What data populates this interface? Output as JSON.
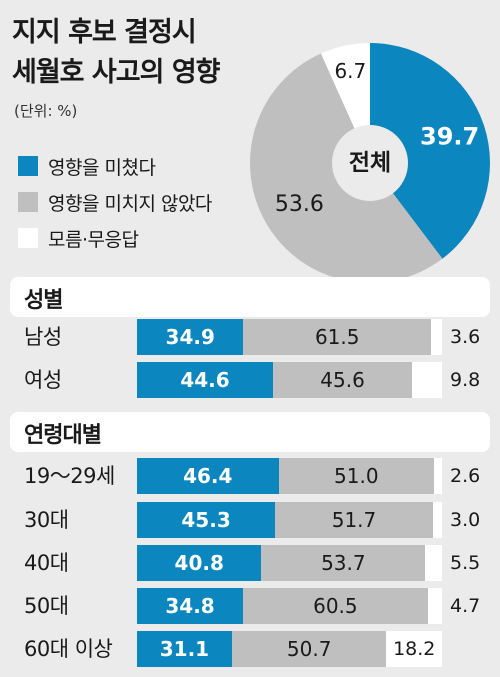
{
  "title_line1": "지지 후보 결정시",
  "title_line2": "세월호 사고의 영향",
  "unit": "(단위: %)",
  "legend": [
    {
      "label": "영향을 미쳤다",
      "color": "#0b86bf"
    },
    {
      "label": "영향을 미치지 않았다",
      "color": "#bfbfbf"
    },
    {
      "label": "모름·무응답",
      "color": "#ffffff"
    }
  ],
  "chart_data": [
    {
      "type": "pie",
      "center_label": "전체",
      "labels": [
        "영향을 미쳤다",
        "영향을 미치지 않았다",
        "모름·무응답"
      ],
      "values": [
        39.7,
        53.6,
        6.7
      ],
      "value_labels": [
        "39.7",
        "53.6",
        "6.7"
      ],
      "colors": [
        "#0b86bf",
        "#bfbfbf",
        "#ffffff"
      ]
    },
    {
      "type": "bar",
      "title": "성별",
      "categories": [
        "남성",
        "여성"
      ],
      "series": [
        {
          "name": "영향을 미쳤다",
          "values": [
            34.9,
            44.6
          ],
          "labels": [
            "34.9",
            "44.6"
          ]
        },
        {
          "name": "영향을 미치지 않았다",
          "values": [
            61.5,
            45.6
          ],
          "labels": [
            "61.5",
            "45.6"
          ]
        },
        {
          "name": "모름·무응답",
          "values": [
            3.6,
            9.8
          ],
          "labels": [
            "3.6",
            "9.8"
          ]
        }
      ]
    },
    {
      "type": "bar",
      "title": "연령대별",
      "categories": [
        "19～29세",
        "30대",
        "40대",
        "50대",
        "60대 이상"
      ],
      "series": [
        {
          "name": "영향을 미쳤다",
          "values": [
            46.4,
            45.3,
            40.8,
            34.8,
            31.1
          ],
          "labels": [
            "46.4",
            "45.3",
            "40.8",
            "34.8",
            "31.1"
          ]
        },
        {
          "name": "영향을 미치지 않았다",
          "values": [
            51.0,
            51.7,
            53.7,
            60.5,
            50.7
          ],
          "labels": [
            "51.0",
            "51.7",
            "53.7",
            "60.5",
            "50.7"
          ]
        },
        {
          "name": "모름·무응답",
          "values": [
            2.6,
            3.0,
            5.5,
            4.7,
            18.2
          ],
          "labels": [
            "2.6",
            "3.0",
            "5.5",
            "4.7",
            "18.2"
          ]
        }
      ]
    }
  ]
}
